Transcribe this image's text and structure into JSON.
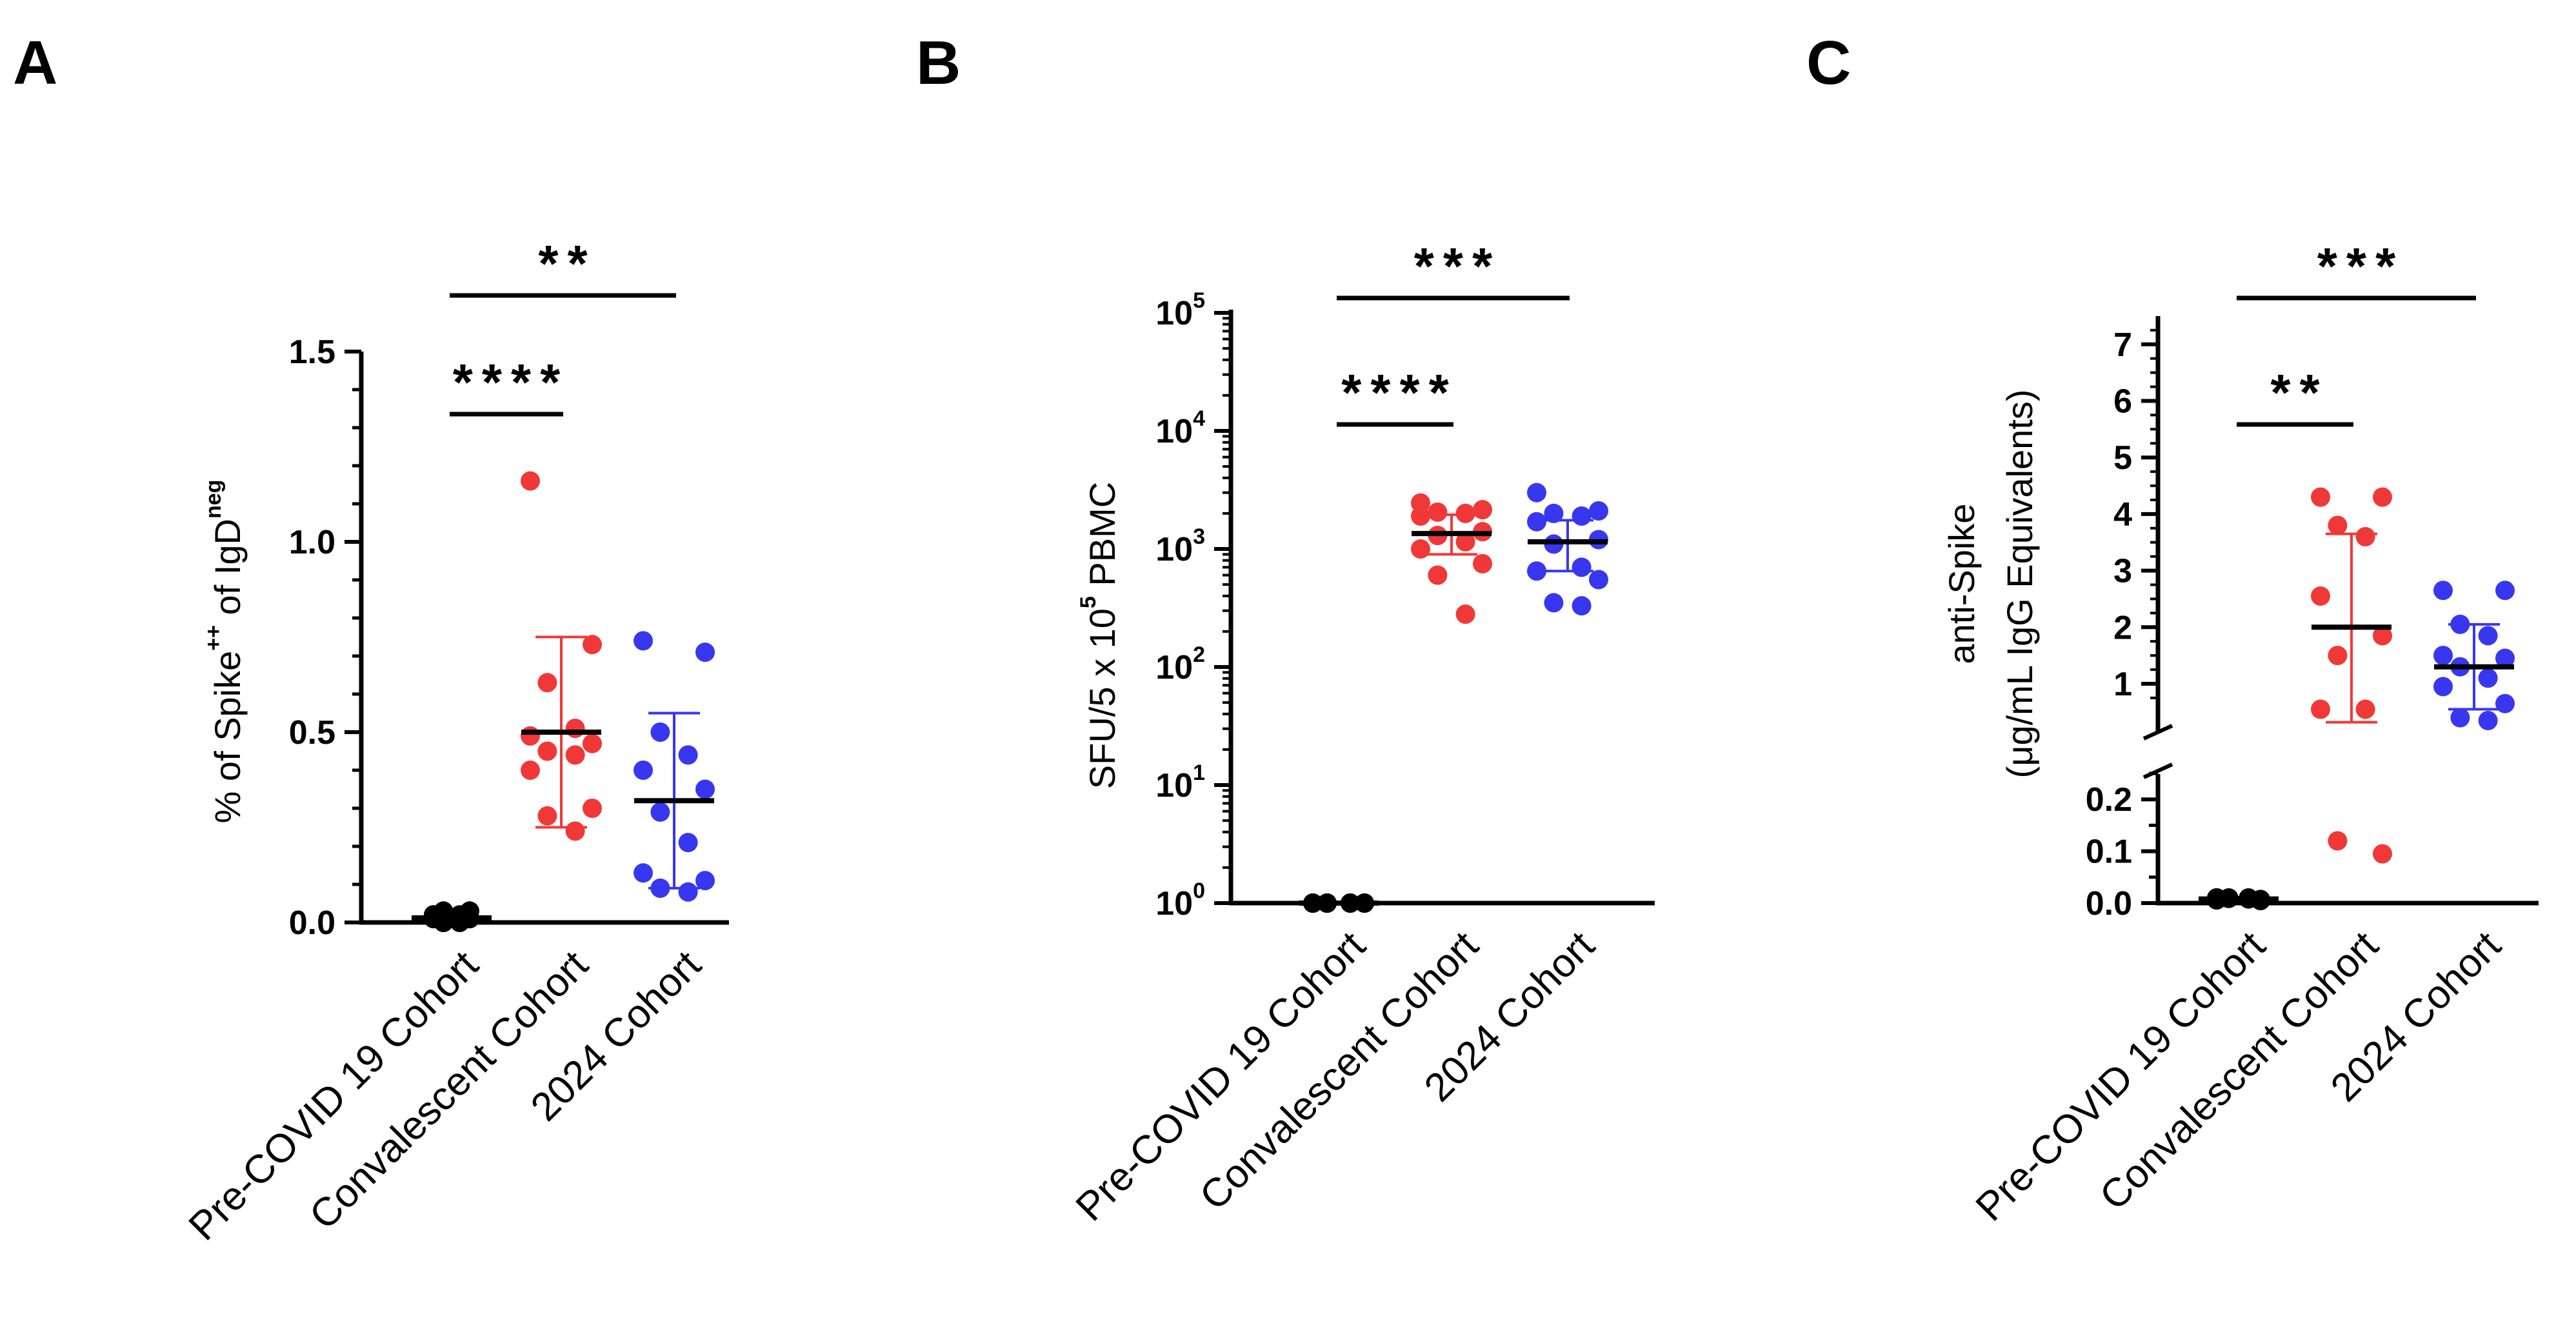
{
  "panels": [
    {
      "letter": "A"
    },
    {
      "letter": "B"
    },
    {
      "letter": "C"
    }
  ],
  "chart_data": [
    {
      "type": "scatter",
      "categories": [
        "Pre-COVID 19 Cohort",
        "Convalescent Cohort",
        "2024 Cohort"
      ],
      "ylabel": "% of Spike++ of IgDneg",
      "ylabel_parts": {
        "a": "% of Spike",
        "b": "++",
        "c": " of IgD",
        "d": "neg"
      },
      "ylim": [
        0,
        1.5
      ],
      "yscale": "linear",
      "yticks": [
        "0.0",
        "0.5",
        "1.0",
        "1.5"
      ],
      "series": [
        {
          "values": [
            0.02,
            0.01,
            0.03,
            0.0,
            0.02,
            0.01,
            0.0,
            0.02,
            0.01,
            0.03,
            0.0,
            0.01
          ],
          "mean": 0.012,
          "sd_low": 0.0,
          "sd_high": 0.025,
          "color": "#000000"
        },
        {
          "values": [
            1.16,
            0.73,
            0.63,
            0.51,
            0.49,
            0.47,
            0.45,
            0.44,
            0.4,
            0.3,
            0.28,
            0.24
          ],
          "mean": 0.5,
          "sd_low": 0.25,
          "sd_high": 0.75,
          "color": "#f03838"
        },
        {
          "values": [
            0.74,
            0.71,
            0.5,
            0.44,
            0.4,
            0.35,
            0.29,
            0.21,
            0.13,
            0.11,
            0.09,
            0.08
          ],
          "mean": 0.32,
          "sd_low": 0.09,
          "sd_high": 0.55,
          "color": "#3737f0"
        }
      ],
      "significance": [
        {
          "label": "****",
          "from": 0,
          "to": 1
        },
        {
          "label": "**",
          "from": 0,
          "to": 2
        }
      ]
    },
    {
      "type": "scatter",
      "categories": [
        "Pre-COVID 19 Cohort",
        "Convalescent Cohort",
        "2024 Cohort"
      ],
      "ylabel": "SFU/5 x 10^5 PBMC",
      "ylabel_parts": {
        "a": "SFU/5 x 10",
        "b": "5",
        "c": " PBMC"
      },
      "ylim": [
        1,
        100000
      ],
      "yscale": "log",
      "yticks": [
        {
          "base": "10",
          "exp": "0"
        },
        {
          "base": "10",
          "exp": "1"
        },
        {
          "base": "10",
          "exp": "2"
        },
        {
          "base": "10",
          "exp": "3"
        },
        {
          "base": "10",
          "exp": "4"
        },
        {
          "base": "10",
          "exp": "5"
        }
      ],
      "series": [
        {
          "values": [
            1,
            1,
            1,
            1,
            1,
            1,
            1,
            1,
            1,
            1,
            1,
            1
          ],
          "mean": 1,
          "sd_low": 1,
          "sd_high": 1,
          "color": "#000000"
        },
        {
          "values": [
            2450,
            2150,
            2050,
            2000,
            1900,
            1400,
            1300,
            1150,
            1000,
            750,
            600,
            280
          ],
          "mean": 1350,
          "sd_low": 900,
          "sd_high": 1950,
          "color": "#f03838"
        },
        {
          "values": [
            3000,
            2100,
            2000,
            1900,
            1700,
            1200,
            1100,
            700,
            650,
            550,
            350,
            330
          ],
          "mean": 1150,
          "sd_low": 650,
          "sd_high": 1750,
          "color": "#3737f0"
        }
      ],
      "significance": [
        {
          "label": "****",
          "from": 0,
          "to": 1
        },
        {
          "label": "***",
          "from": 0,
          "to": 2
        }
      ]
    },
    {
      "type": "scatter",
      "categories": [
        "Pre-COVID 19 Cohort",
        "Convalescent Cohort",
        "2024 Cohort"
      ],
      "ylabel_line1": "anti-Spike",
      "ylabel_line2": "(μg/mL IgG Equivalents)",
      "yscale": "broken-linear",
      "lower_ylim": [
        0,
        0.25
      ],
      "upper_ylim": [
        0.5,
        7.5
      ],
      "lower_yticks": [
        "0.0",
        "0.1",
        "0.2"
      ],
      "upper_yticks": [
        "1",
        "2",
        "3",
        "4",
        "5",
        "6",
        "7"
      ],
      "series": [
        {
          "values": [
            0.01,
            0.005,
            0.01,
            0.008,
            0.01,
            0.007,
            0.009,
            0.01,
            0.006,
            0.005
          ],
          "mean": 0.008,
          "sd_low": 0.005,
          "sd_high": 0.011,
          "color": "#000000"
        },
        {
          "values": [
            4.3,
            4.3,
            3.8,
            3.6,
            2.55,
            1.85,
            1.5,
            0.55,
            0.55,
            0.095,
            0.12
          ],
          "mean": 2.0,
          "sd_low": 0.32,
          "sd_high": 3.65,
          "color": "#f03838"
        },
        {
          "values": [
            2.65,
            2.65,
            2.05,
            1.85,
            1.5,
            1.45,
            1.3,
            1.1,
            0.95,
            0.65,
            0.4,
            0.35
          ],
          "mean": 1.3,
          "sd_low": 0.55,
          "sd_high": 2.05,
          "color": "#3737f0"
        }
      ],
      "significance": [
        {
          "label": "**",
          "from": 0,
          "to": 1
        },
        {
          "label": "***",
          "from": 0,
          "to": 2
        }
      ]
    }
  ]
}
